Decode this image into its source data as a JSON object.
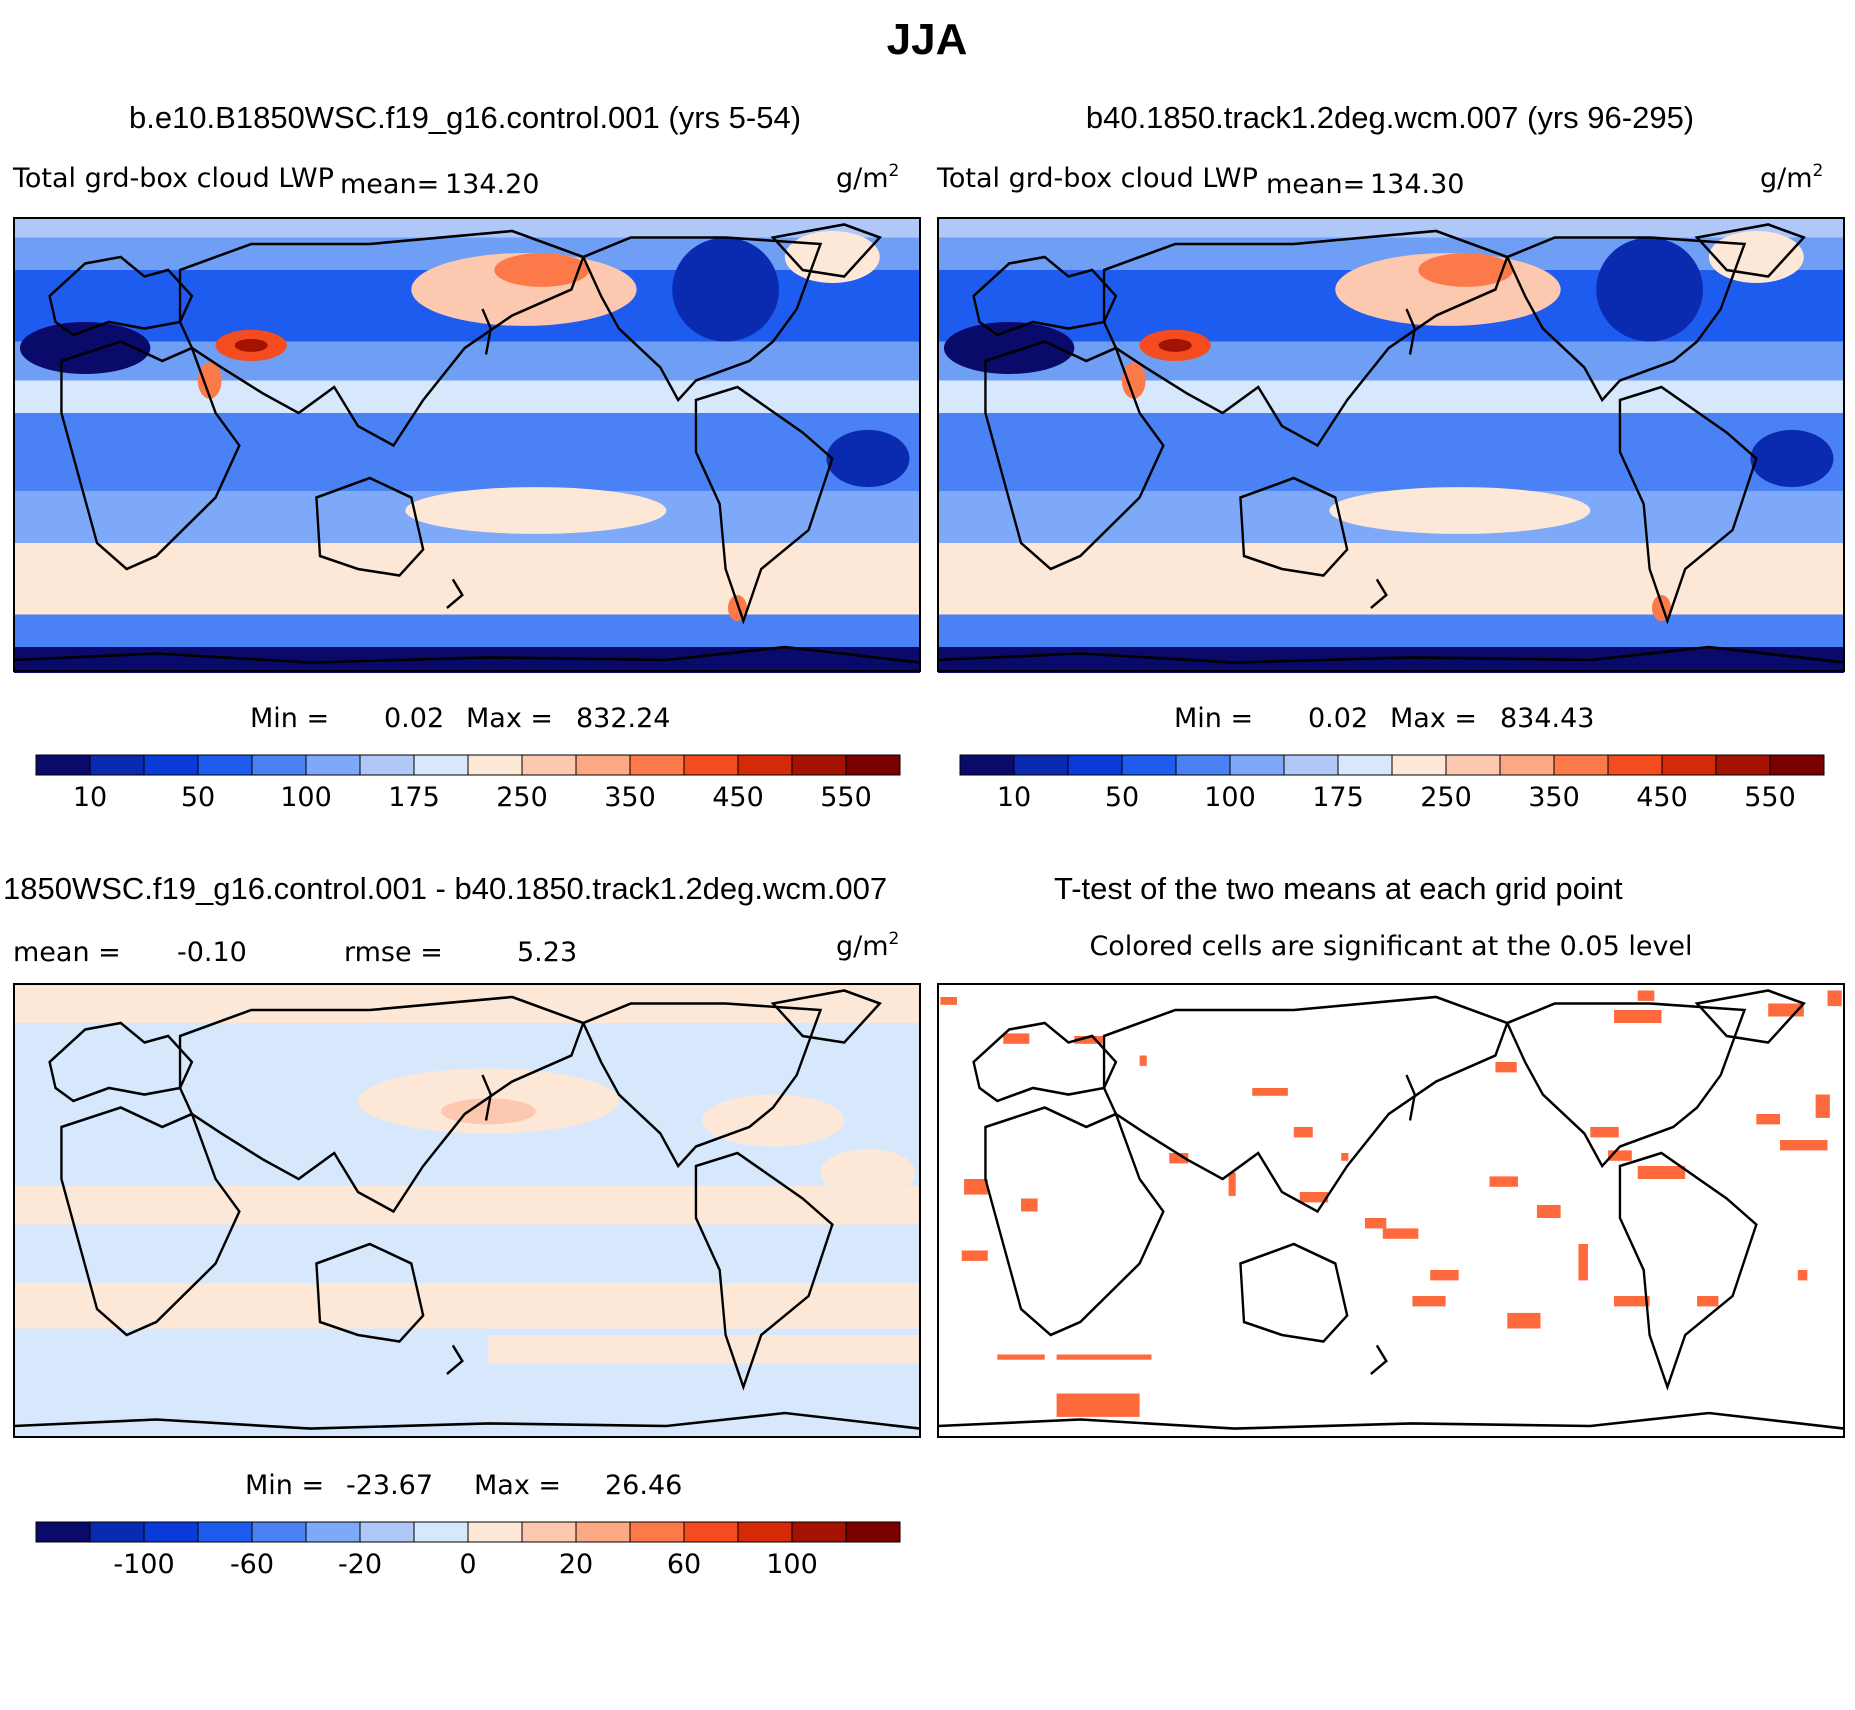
{
  "figure_title": "JJA",
  "colors": {
    "land_outline": "#000000",
    "ttest_fill": "#ff6a3d",
    "scale_main": [
      "#0a0a6b",
      "#0a2ab0",
      "#0a3ad8",
      "#1e5cf0",
      "#4a82f5",
      "#7ea8f8",
      "#b0c8f8",
      "#d8e8fc",
      "#fde8d8",
      "#fcc8b0",
      "#fca882",
      "#fc7a4a",
      "#f44c1e",
      "#d42a08",
      "#a41204",
      "#7a0000"
    ],
    "scale_diff": [
      "#0a0a6b",
      "#0a2ab0",
      "#0a3ad8",
      "#1e5cf0",
      "#4a82f5",
      "#7ea8f8",
      "#b0c8f8",
      "#d8e8fc",
      "#fde8d8",
      "#fcc8b0",
      "#fca882",
      "#fc7a4a",
      "#f44c1e",
      "#d42a08",
      "#a41204",
      "#7a0000"
    ]
  },
  "chart_data": [
    {
      "type": "heatmap",
      "panel": "top-left",
      "title": "b.e10.B1850WSC.f19_g16.control.001 (yrs 5-54)",
      "variable": "Total grd-box cloud LWP",
      "mean_label": "mean=",
      "mean_value": "134.20",
      "units_base": "g/m",
      "units_exp": "2",
      "stats": {
        "min_label": "Min =",
        "min": "0.02",
        "max_label": "Max =",
        "max": "832.24"
      },
      "colorbar_ticks": [
        "10",
        "50",
        "100",
        "175",
        "250",
        "350",
        "450",
        "550"
      ],
      "tick_after_box": [
        1,
        3,
        5,
        7,
        9,
        11,
        13,
        15
      ]
    },
    {
      "type": "heatmap",
      "panel": "top-right",
      "title": "b40.1850.track1.2deg.wcm.007 (yrs 96-295)",
      "variable": "Total grd-box cloud LWP",
      "mean_label": "mean=",
      "mean_value": "134.30",
      "units_base": "g/m",
      "units_exp": "2",
      "stats": {
        "min_label": "Min =",
        "min": "0.02",
        "max_label": "Max =",
        "max": "834.43"
      },
      "colorbar_ticks": [
        "10",
        "50",
        "100",
        "175",
        "250",
        "350",
        "450",
        "550"
      ],
      "tick_after_box": [
        1,
        3,
        5,
        7,
        9,
        11,
        13,
        15
      ]
    },
    {
      "type": "heatmap",
      "panel": "bottom-left",
      "title": "1850WSC.f19_g16.control.001 - b40.1850.track1.2deg.wcm.007",
      "mean_label": "mean =",
      "mean_value": "-0.10",
      "rmse_label": "rmse =",
      "rmse_value": "5.23",
      "units_base": "g/m",
      "units_exp": "2",
      "stats": {
        "min_label": "Min =",
        "min": "-23.67",
        "max_label": "Max =",
        "max": "26.46"
      },
      "colorbar_ticks": [
        "-100",
        "-60",
        "-20",
        "0",
        "20",
        "60",
        "100"
      ],
      "tick_after_box": [
        2,
        4,
        6,
        8,
        10,
        12,
        14
      ]
    },
    {
      "type": "heatmap",
      "panel": "bottom-right",
      "title": "T-test of the two means at each grid point",
      "subtitle": "Colored cells are significant at the 0.05 level"
    }
  ]
}
